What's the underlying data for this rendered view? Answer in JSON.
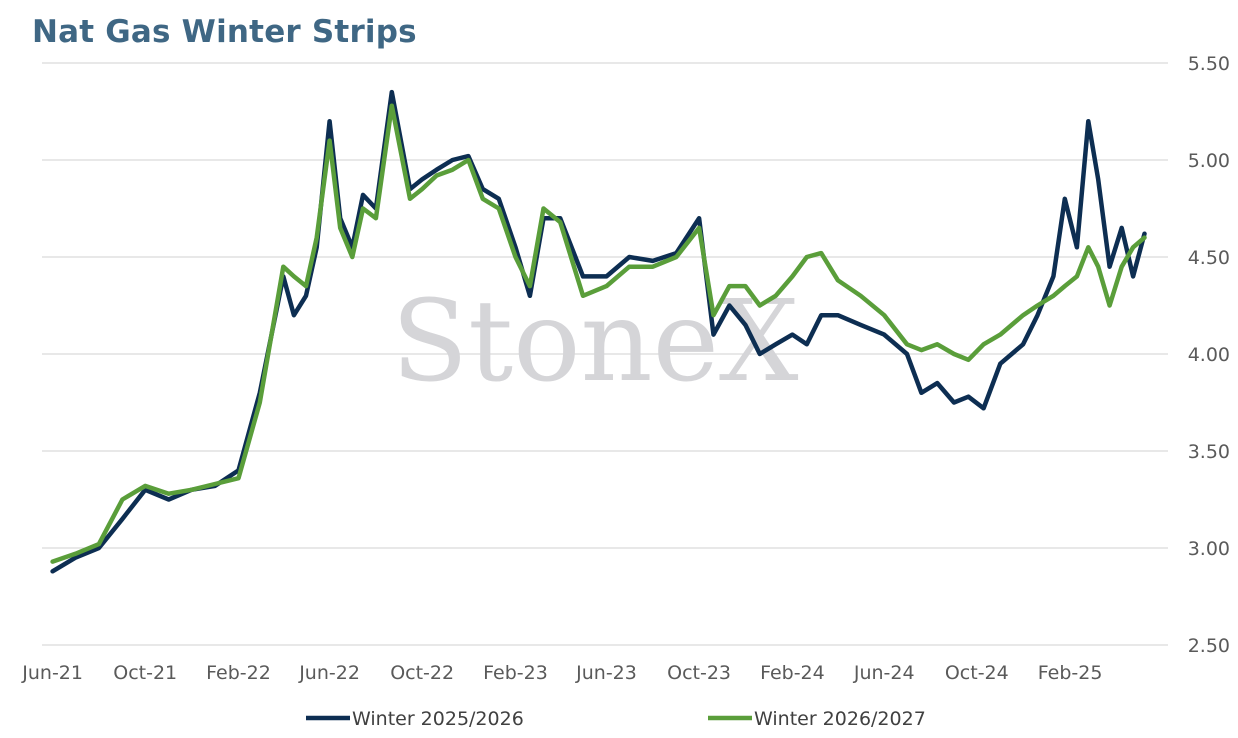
{
  "colors": {
    "title": "#3f6784",
    "grid": "#d9d9d9",
    "series1": "#0d2e52",
    "series2": "#5a9e3a",
    "watermark": "#d5d5d8"
  },
  "watermark": "StoneX",
  "chart_data": {
    "type": "line",
    "title": "Nat Gas Winter Strips",
    "xlabel": "",
    "ylabel": "",
    "x_tick_labels": [
      "Jun-21",
      "Oct-21",
      "Feb-22",
      "Jun-22",
      "Oct-22",
      "Feb-23",
      "Jun-23",
      "Oct-23",
      "Feb-24",
      "Jun-24",
      "Oct-24",
      "Feb-25"
    ],
    "y_tick_labels": [
      "2.50",
      "3.00",
      "3.50",
      "4.00",
      "4.50",
      "5.00",
      "5.50"
    ],
    "ylim": [
      2.5,
      5.5
    ],
    "y_axis_side": "right",
    "grid": true,
    "legend_position": "bottom",
    "x": [
      "2021-06-01",
      "2021-07-01",
      "2021-08-01",
      "2021-09-01",
      "2021-10-01",
      "2021-11-01",
      "2021-12-01",
      "2022-01-01",
      "2022-02-01",
      "2022-03-01",
      "2022-04-01",
      "2022-04-15",
      "2022-05-01",
      "2022-05-15",
      "2022-06-01",
      "2022-06-15",
      "2022-07-01",
      "2022-07-15",
      "2022-08-01",
      "2022-08-22",
      "2022-09-15",
      "2022-10-01",
      "2022-10-20",
      "2022-11-10",
      "2022-12-01",
      "2022-12-20",
      "2023-01-10",
      "2023-02-01",
      "2023-02-20",
      "2023-03-10",
      "2023-04-01",
      "2023-05-01",
      "2023-06-01",
      "2023-07-01",
      "2023-08-01",
      "2023-09-01",
      "2023-10-01",
      "2023-10-20",
      "2023-11-10",
      "2023-12-01",
      "2023-12-20",
      "2024-01-10",
      "2024-02-01",
      "2024-02-20",
      "2024-03-10",
      "2024-04-01",
      "2024-05-01",
      "2024-06-01",
      "2024-07-01",
      "2024-07-20",
      "2024-08-10",
      "2024-09-01",
      "2024-09-20",
      "2024-10-10",
      "2024-11-01",
      "2024-12-01",
      "2024-12-20",
      "2025-01-10",
      "2025-01-25",
      "2025-02-10",
      "2025-02-25",
      "2025-03-10",
      "2025-03-25",
      "2025-04-10",
      "2025-04-25",
      "2025-05-10"
    ],
    "series": [
      {
        "name": "Winter 2025/2026",
        "values": [
          2.88,
          2.95,
          3.0,
          3.15,
          3.3,
          3.25,
          3.3,
          3.32,
          3.4,
          3.8,
          4.4,
          4.2,
          4.3,
          4.55,
          5.2,
          4.7,
          4.55,
          4.82,
          4.75,
          5.35,
          4.85,
          4.9,
          4.95,
          5.0,
          5.02,
          4.85,
          4.8,
          4.55,
          4.3,
          4.7,
          4.7,
          4.4,
          4.4,
          4.5,
          4.48,
          4.52,
          4.7,
          4.1,
          4.25,
          4.15,
          4.0,
          4.05,
          4.1,
          4.05,
          4.2,
          4.2,
          4.15,
          4.1,
          4.0,
          3.8,
          3.85,
          3.75,
          3.78,
          3.72,
          3.95,
          4.05,
          4.2,
          4.4,
          4.8,
          4.55,
          5.2,
          4.9,
          4.45,
          4.65,
          4.4,
          4.62
        ]
      },
      {
        "name": "Winter 2026/2027",
        "values": [
          2.93,
          2.97,
          3.02,
          3.25,
          3.32,
          3.28,
          3.3,
          3.33,
          3.36,
          3.75,
          4.45,
          4.4,
          4.35,
          4.6,
          5.1,
          4.65,
          4.5,
          4.75,
          4.7,
          5.28,
          4.8,
          4.85,
          4.92,
          4.95,
          5.0,
          4.8,
          4.75,
          4.5,
          4.35,
          4.75,
          4.68,
          4.3,
          4.35,
          4.45,
          4.45,
          4.5,
          4.65,
          4.2,
          4.35,
          4.35,
          4.25,
          4.3,
          4.4,
          4.5,
          4.52,
          4.38,
          4.3,
          4.2,
          4.05,
          4.02,
          4.05,
          4.0,
          3.97,
          4.05,
          4.1,
          4.2,
          4.25,
          4.3,
          4.35,
          4.4,
          4.55,
          4.45,
          4.25,
          4.45,
          4.55,
          4.6
        ]
      }
    ]
  }
}
